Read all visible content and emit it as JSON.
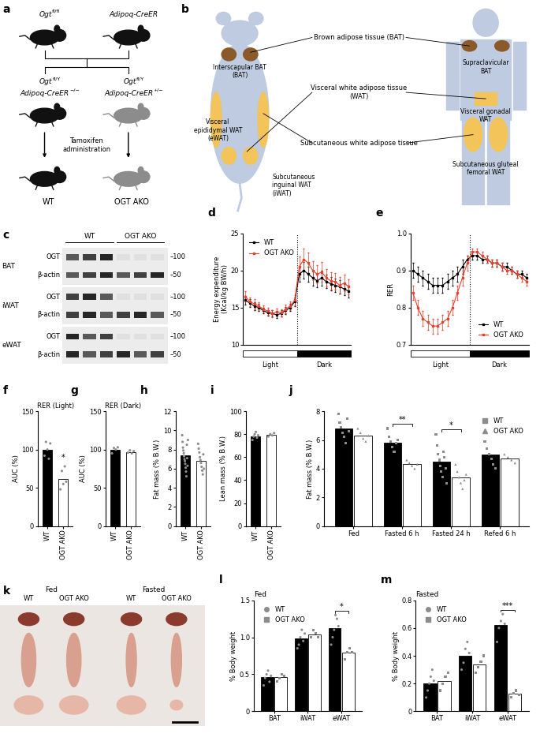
{
  "panels": {
    "a": {
      "letter": "a",
      "parents": [
        [
          [
            "Ogt",
            "fl/fl"
          ]
        ],
        [
          [
            "Adipoq-CreER"
          ]
        ]
      ],
      "offspring": [
        [
          [
            "Ogt",
            "fl/Y"
          ],
          [
            "Adipoq-CreER",
            "−/−"
          ]
        ],
        [
          [
            "Ogt",
            "fl/Y"
          ],
          [
            "Adipoq-CreER",
            "+/−"
          ]
        ]
      ],
      "treatment": "Tamoxifen\nadministration",
      "groups": [
        "WT",
        "OGT AKO"
      ]
    },
    "b": {
      "letter": "b",
      "center_labels": [
        "Brown adipose tissue (BAT)",
        "Visceral white adipose tissue\n(WAT)",
        "Subcutaneous white adipose tissue"
      ],
      "mouse_labels": [
        "Interscapular BAT\n(BAT)",
        "Visceral\nepididymal WAT\n(eWAT)",
        "Subcutaneous\ninguinal WAT\n(iWAT)"
      ],
      "human_labels": [
        "Supraclavicular\nBAT",
        "Visceral gonadal\nWAT",
        "Subcutaneous gluteal\nfemoral WAT"
      ]
    },
    "c": {
      "letter": "c",
      "groups": [
        {
          "label": "WT",
          "lanes": 3
        },
        {
          "label": "OGT AKO",
          "lanes": 3
        }
      ],
      "blots": [
        {
          "tissue": "BAT",
          "rows": [
            {
              "label": "OGT",
              "marker": "–100"
            },
            {
              "label": "β-actin",
              "marker": "–50"
            }
          ]
        },
        {
          "tissue": "iWAT",
          "rows": [
            {
              "label": "OGT",
              "marker": "–100"
            },
            {
              "label": "β-actin",
              "marker": "–50"
            }
          ]
        },
        {
          "tissue": "eWAT",
          "rows": [
            {
              "label": "OGT",
              "marker": "–100"
            },
            {
              "label": "β-actin",
              "marker": "–50"
            }
          ]
        }
      ]
    },
    "k": {
      "letter": "k",
      "conditions": [
        "Fed",
        "Fasted"
      ],
      "groups": [
        "WT",
        "OGT AKO"
      ]
    }
  },
  "chart_data": [
    {
      "panel": "d",
      "type": "line",
      "y_label": "Energy expenditure\n(Kcal/kg BW/h)",
      "categories": [
        null,
        null,
        null,
        null,
        null,
        null,
        null,
        null,
        null,
        null,
        null,
        null,
        null,
        null,
        null,
        null,
        null,
        null,
        null,
        null,
        null,
        null,
        null,
        null
      ],
      "series": [
        {
          "name": "WT",
          "color": "#000000",
          "marker": "square",
          "values": [
            16.0,
            15.6,
            15.2,
            15.0,
            14.6,
            14.3,
            14.2,
            14.0,
            14.2,
            14.6,
            15.0,
            15.8,
            19.5,
            20.0,
            19.5,
            19.0,
            18.6,
            19.0,
            18.5,
            18.2,
            18.0,
            17.8,
            17.5,
            17.2
          ],
          "errors": [
            0.6,
            0.5,
            0.5,
            0.5,
            0.4,
            0.4,
            0.4,
            0.4,
            0.4,
            0.5,
            0.5,
            0.6,
            1.0,
            1.1,
            1.0,
            1.0,
            0.9,
            1.0,
            0.9,
            0.9,
            0.9,
            0.9,
            0.8,
            0.8
          ]
        },
        {
          "name": "OGT AKO",
          "color": "#e8412c",
          "marker": "square",
          "values": [
            16.5,
            15.8,
            15.5,
            15.2,
            14.8,
            14.5,
            14.2,
            14.4,
            14.3,
            14.8,
            15.2,
            16.0,
            20.5,
            21.5,
            21.0,
            20.0,
            19.5,
            19.8,
            19.0,
            18.6,
            18.5,
            18.0,
            18.3,
            17.8
          ],
          "errors": [
            0.7,
            0.6,
            0.6,
            0.5,
            0.5,
            0.5,
            0.5,
            0.5,
            0.5,
            0.6,
            0.6,
            0.7,
            1.4,
            1.5,
            1.4,
            1.3,
            1.2,
            1.3,
            1.2,
            1.2,
            1.1,
            1.1,
            1.1,
            1.0
          ]
        }
      ],
      "ylim": [
        10,
        25
      ],
      "yticks": [
        10,
        15,
        20,
        25
      ],
      "legend": "upper left",
      "tick_labels": "y",
      "phases": [
        {
          "label": "Light",
          "color": "#ffffff",
          "points": 12
        },
        {
          "label": "Dark",
          "color": "#000000",
          "points": 12
        }
      ]
    },
    {
      "panel": "e",
      "type": "line",
      "y_label": "RER",
      "categories": [
        null,
        null,
        null,
        null,
        null,
        null,
        null,
        null,
        null,
        null,
        null,
        null,
        null,
        null,
        null,
        null,
        null,
        null,
        null,
        null,
        null,
        null,
        null,
        null
      ],
      "series": [
        {
          "name": "WT",
          "color": "#000000",
          "marker": "square",
          "values": [
            0.9,
            0.89,
            0.88,
            0.87,
            0.86,
            0.86,
            0.86,
            0.87,
            0.88,
            0.89,
            0.91,
            0.93,
            0.94,
            0.94,
            0.93,
            0.93,
            0.92,
            0.92,
            0.91,
            0.91,
            0.9,
            0.89,
            0.89,
            0.88
          ],
          "errors": [
            0.02,
            0.02,
            0.02,
            0.02,
            0.02,
            0.02,
            0.02,
            0.02,
            0.02,
            0.02,
            0.02,
            0.01,
            0.01,
            0.01,
            0.01,
            0.01,
            0.01,
            0.01,
            0.01,
            0.01,
            0.01,
            0.01,
            0.01,
            0.01
          ]
        },
        {
          "name": "OGT AKO",
          "color": "#e8412c",
          "marker": "square",
          "values": [
            0.84,
            0.8,
            0.77,
            0.76,
            0.75,
            0.75,
            0.76,
            0.77,
            0.8,
            0.84,
            0.88,
            0.92,
            0.95,
            0.95,
            0.94,
            0.93,
            0.92,
            0.92,
            0.91,
            0.9,
            0.9,
            0.89,
            0.88,
            0.87
          ],
          "errors": [
            0.02,
            0.02,
            0.02,
            0.02,
            0.02,
            0.02,
            0.02,
            0.02,
            0.02,
            0.02,
            0.02,
            0.02,
            0.01,
            0.01,
            0.01,
            0.01,
            0.01,
            0.01,
            0.01,
            0.01,
            0.01,
            0.01,
            0.01,
            0.01
          ]
        }
      ],
      "ylim": [
        0.7,
        1.0
      ],
      "yticks": [
        0.7,
        0.8,
        0.9,
        1.0
      ],
      "legend": "lower right",
      "tick_labels": "y",
      "phases": [
        {
          "label": "Light",
          "color": "#ffffff",
          "points": 12
        },
        {
          "label": "Dark",
          "color": "#000000",
          "points": 12
        }
      ]
    },
    {
      "panel": "f",
      "type": "bar",
      "title": "RER (Light)",
      "y_label": "AUC (%)",
      "categories": [
        "WT",
        "OGT AKO"
      ],
      "values": [
        100,
        62
      ],
      "colors": [
        "#000000",
        "#ffffff"
      ],
      "marker": "circle",
      "points": [
        [
          92,
          110,
          100,
          88,
          108
        ],
        [
          48,
          72,
          55,
          78,
          58
        ]
      ],
      "ylim": [
        0,
        150
      ],
      "yticks": [
        0,
        50,
        100,
        150
      ],
      "annotations": [
        {
          "category": "OGT AKO",
          "text": "*"
        }
      ]
    },
    {
      "panel": "g",
      "type": "bar",
      "title": "RER (Dark)",
      "y_label": "AUC (%)",
      "categories": [
        "WT",
        "OGT AKO"
      ],
      "values": [
        100,
        97
      ],
      "colors": [
        "#000000",
        "#ffffff"
      ],
      "marker": "circle",
      "points": [
        [
          95,
          102,
          100,
          103
        ],
        [
          96,
          99,
          95,
          98
        ]
      ],
      "ylim": [
        0,
        150
      ],
      "yticks": [
        0,
        50,
        100,
        150
      ]
    },
    {
      "panel": "h",
      "type": "bar",
      "y_label": "Fat mass (% B.W.)",
      "categories": [
        "WT",
        "OGT AKO"
      ],
      "values": [
        7.4,
        6.8
      ],
      "colors": [
        "#000000",
        "#ffffff"
      ],
      "marker": "circle",
      "points": [
        [
          9.5,
          8.8,
          8.2,
          7.9,
          7.6,
          7.3,
          7.0,
          6.8,
          6.5,
          6.1,
          5.7,
          5.2,
          8.5,
          7.1,
          6.3,
          9.0
        ],
        [
          8.6,
          8.1,
          7.7,
          7.2,
          6.9,
          6.6,
          6.2,
          5.8,
          5.4,
          7.5,
          6.0
        ]
      ],
      "ylim": [
        0,
        12
      ],
      "yticks": [
        0,
        2,
        4,
        6,
        8,
        10,
        12
      ]
    },
    {
      "panel": "i",
      "type": "bar",
      "y_label": "Lean mass (% B.W.)",
      "categories": [
        "WT",
        "OGT AKO"
      ],
      "values": [
        78,
        79.5
      ],
      "colors": [
        "#000000",
        "#ffffff"
      ],
      "marker": "circle",
      "points": [
        [
          75,
          78,
          80,
          82,
          77,
          79
        ],
        [
          78,
          80,
          79,
          81
        ]
      ],
      "ylim": [
        0,
        100
      ],
      "yticks": [
        0,
        20,
        40,
        60,
        80,
        100
      ]
    },
    {
      "panel": "j",
      "type": "bar",
      "y_label": "Fat mass (% B.W.)",
      "categories": [
        "Fed",
        "Fasted 6 h",
        "Fasted 24 h",
        "Refed 6 h"
      ],
      "series": [
        {
          "name": "WT",
          "color": "#000000",
          "marker": "square",
          "values": [
            6.8,
            5.8,
            4.5,
            5.0
          ],
          "points": [
            [
              7.8,
              7.2,
              6.9,
              6.5,
              6.2,
              5.8,
              7.5,
              6.6
            ],
            [
              6.8,
              6.2,
              5.9,
              5.5,
              5.2,
              5.8,
              6.0
            ],
            [
              6.4,
              5.6,
              5.0,
              4.6,
              4.2,
              3.8,
              3.4,
              5.2,
              4.8,
              4.0,
              3.0
            ],
            [
              5.9,
              5.4,
              5.0,
              4.7,
              4.3,
              4.0
            ]
          ]
        },
        {
          "name": "OGT AKO",
          "color": "#ffffff",
          "marker": "triangle",
          "values": [
            6.3,
            4.3,
            3.4,
            4.7
          ],
          "points": [
            [
              6.8,
              6.5,
              6.1,
              5.9,
              6.3
            ],
            [
              4.6,
              4.4,
              4.2,
              4.0,
              4.3
            ],
            [
              4.3,
              3.8,
              3.4,
              3.0,
              2.6,
              3.2,
              3.6
            ],
            [
              5.0,
              4.8,
              4.6,
              4.4
            ]
          ]
        }
      ],
      "legend": "upper right",
      "ylim": [
        0,
        8
      ],
      "yticks": [
        0,
        2,
        4,
        6,
        8
      ],
      "annotations": [
        {
          "category": "Fasted 6 h",
          "text": "**"
        },
        {
          "category": "Fasted 24 h",
          "text": "*"
        }
      ]
    },
    {
      "panel": "l",
      "type": "bar",
      "title": "Fed",
      "y_label": "% Body weight",
      "categories": [
        "BAT",
        "iWAT",
        "eWAT"
      ],
      "series": [
        {
          "name": "WT",
          "color": "#000000",
          "marker": "circle",
          "values": [
            0.46,
            0.98,
            1.12
          ],
          "points": [
            [
              0.35,
              0.45,
              0.5,
              0.55,
              0.4,
              0.48
            ],
            [
              0.85,
              0.9,
              1.0,
              1.1,
              0.95,
              1.05
            ],
            [
              0.9,
              1.0,
              1.1,
              1.3,
              1.25,
              1.15
            ]
          ]
        },
        {
          "name": "OGT AKO",
          "color": "#ffffff",
          "marker": "square",
          "values": [
            0.46,
            1.04,
            0.79
          ],
          "points": [
            [
              0.4,
              0.45,
              0.5,
              0.48
            ],
            [
              1.0,
              1.1,
              1.05,
              1.0
            ],
            [
              0.7,
              0.8,
              0.85,
              0.8
            ]
          ]
        }
      ],
      "legend": "upper left",
      "ylim": [
        0,
        1.5
      ],
      "yticks": [
        0,
        0.5,
        1.0,
        1.5
      ],
      "annotations": [
        {
          "category": "eWAT",
          "text": "*"
        }
      ]
    },
    {
      "panel": "m",
      "type": "bar",
      "title": "Fasted",
      "y_label": "% Body weight",
      "categories": [
        "BAT",
        "iWAT",
        "eWAT"
      ],
      "series": [
        {
          "name": "WT",
          "color": "#000000",
          "marker": "circle",
          "values": [
            0.2,
            0.4,
            0.62
          ],
          "points": [
            [
              0.1,
              0.15,
              0.2,
              0.25,
              0.3,
              0.22
            ],
            [
              0.3,
              0.35,
              0.45,
              0.5,
              0.42
            ],
            [
              0.5,
              0.6,
              0.65,
              0.7,
              0.63
            ]
          ]
        },
        {
          "name": "OGT AKO",
          "color": "#ffffff",
          "marker": "square",
          "values": [
            0.22,
            0.34,
            0.13
          ],
          "points": [
            [
              0.15,
              0.2,
              0.25,
              0.28
            ],
            [
              0.28,
              0.32,
              0.36,
              0.4
            ],
            [
              0.1,
              0.13,
              0.15,
              0.12
            ]
          ]
        }
      ],
      "legend": "upper left",
      "ylim": [
        0,
        0.8
      ],
      "yticks": [
        0,
        0.2,
        0.4,
        0.6,
        0.8
      ],
      "annotations": [
        {
          "category": "eWAT",
          "text": "***"
        }
      ]
    }
  ]
}
